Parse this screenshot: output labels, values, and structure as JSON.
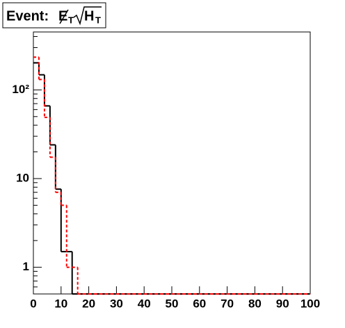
{
  "chart_data": {
    "type": "histogram",
    "title": {
      "prefix": "Event:",
      "numerator": "E",
      "numerator_sub": "T",
      "denominator": "H",
      "denominator_sub": "T"
    },
    "bins": [
      0,
      2,
      4,
      6,
      8,
      10,
      12,
      14,
      16,
      18,
      20,
      22,
      24,
      26,
      28,
      30,
      32,
      34,
      36,
      38,
      40,
      42,
      44,
      46,
      48,
      50,
      52,
      54,
      56,
      58,
      60,
      62,
      64,
      66,
      68,
      70,
      72,
      74,
      76,
      78,
      80,
      82,
      84,
      86,
      88,
      90,
      92,
      94,
      96,
      98,
      100
    ],
    "series": [
      {
        "color": "#000000",
        "dash": false,
        "values": [
          202,
          148,
          66,
          24,
          7.6,
          1.5,
          1.5,
          0,
          0,
          0,
          0,
          0,
          0,
          0,
          0,
          0,
          0,
          0,
          0,
          0,
          0,
          0,
          0,
          0,
          0,
          0,
          0,
          0,
          0,
          0,
          0,
          0,
          0,
          0,
          0,
          0,
          0,
          0,
          0,
          0,
          0,
          0,
          0,
          0,
          0,
          0,
          0,
          0,
          0,
          0
        ]
      },
      {
        "color": "#ff0000",
        "dash": true,
        "values": [
          234,
          131,
          49,
          17.4,
          7,
          5,
          1,
          1,
          0,
          0,
          0,
          0,
          0,
          0,
          0,
          0,
          0,
          0,
          0,
          0,
          0,
          0,
          0,
          0,
          0,
          0,
          0,
          0,
          0,
          0,
          0,
          0,
          0,
          0,
          0,
          0,
          0,
          0,
          0,
          0,
          0,
          0,
          0,
          0,
          0,
          0,
          0,
          0,
          0,
          0
        ]
      }
    ],
    "xlim": [
      0,
      100
    ],
    "xticks": [
      0,
      10,
      20,
      30,
      40,
      50,
      60,
      70,
      80,
      90,
      100
    ],
    "ylim": [
      0.5,
      450
    ],
    "log_y": true,
    "yticks": [
      1,
      10,
      {
        "value": 100,
        "label": "10²"
      }
    ],
    "yminorticks": [
      0.6,
      0.7,
      0.8,
      0.9,
      2,
      3,
      4,
      5,
      6,
      7,
      8,
      9,
      20,
      30,
      40,
      50,
      60,
      70,
      80,
      90,
      200,
      300,
      400
    ]
  }
}
